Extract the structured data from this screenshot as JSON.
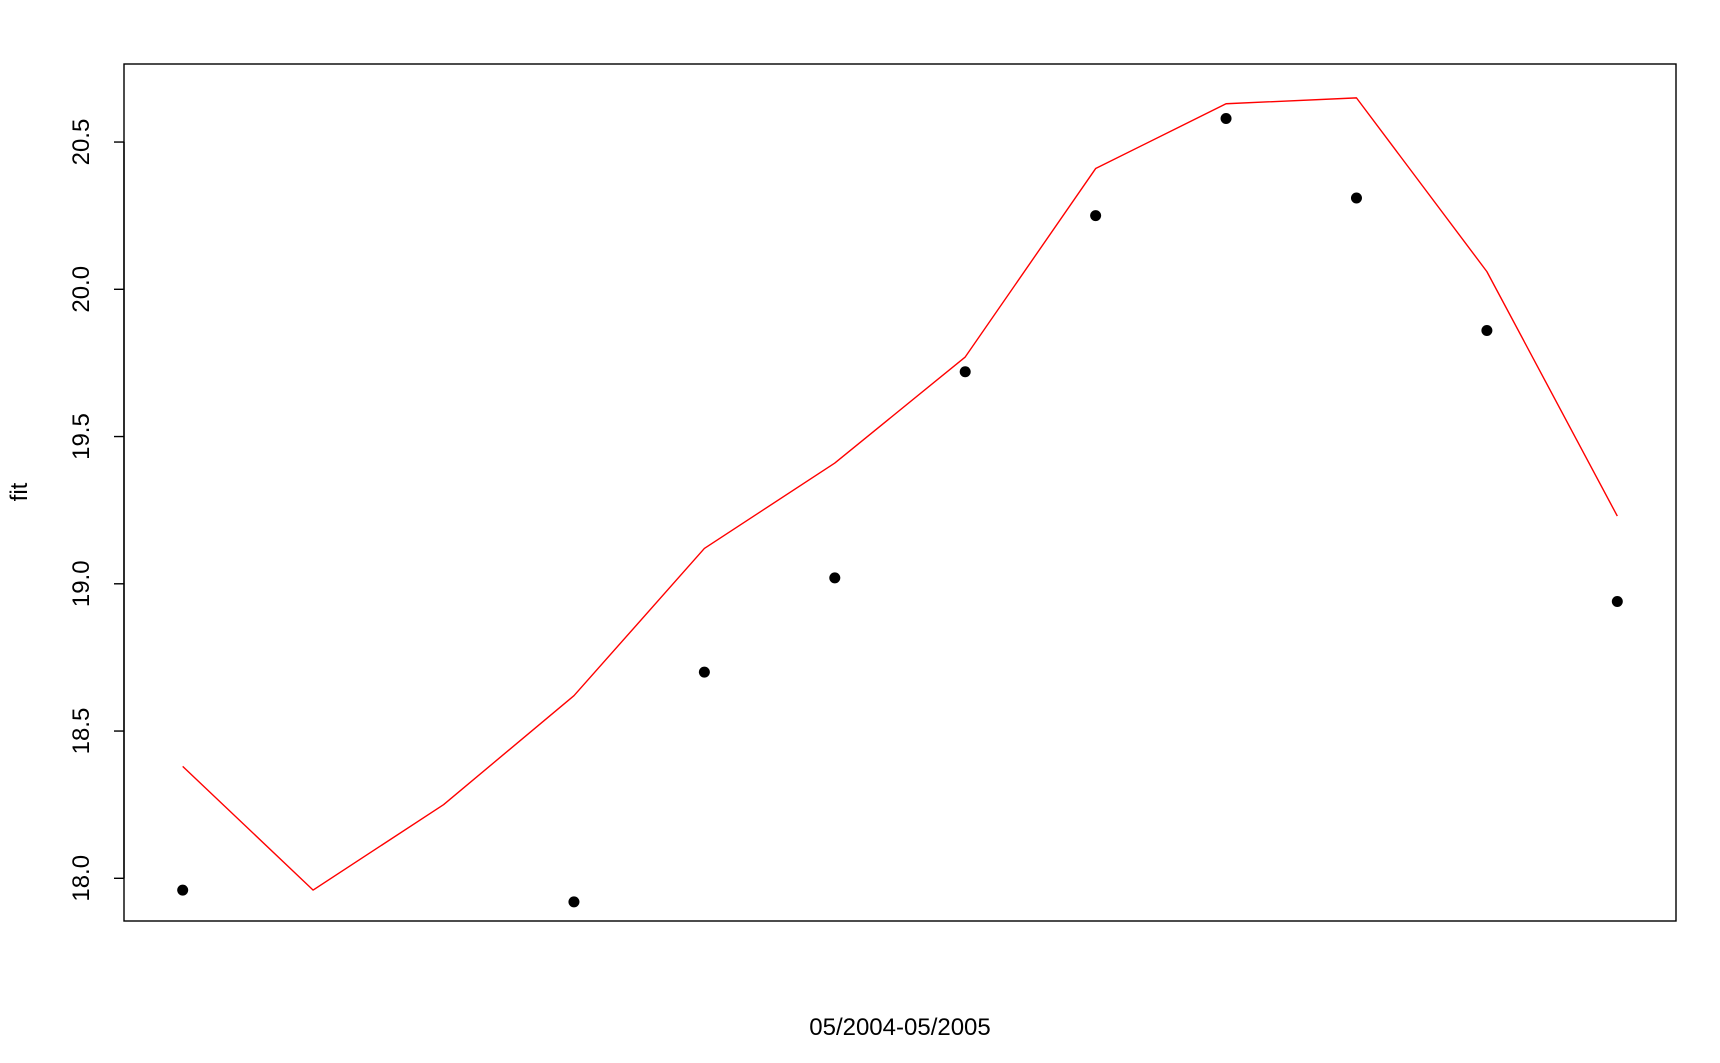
{
  "chart_data": {
    "type": "line",
    "title": "",
    "xlabel": "05/2004-05/2005",
    "ylabel": "fit",
    "x": [
      1,
      2,
      3,
      4,
      5,
      6,
      7,
      8,
      9,
      10,
      11,
      12
    ],
    "xlim": [
      0.55,
      12.45
    ],
    "ylim": [
      17.855,
      20.765
    ],
    "yticks": [
      "18.0",
      "18.5",
      "19.0",
      "19.5",
      "20.0",
      "20.5"
    ],
    "grid": false,
    "legend": "none",
    "series": [
      {
        "kind": "points",
        "color": "#000000",
        "values": [
          17.96,
          null,
          null,
          17.92,
          18.7,
          19.02,
          19.72,
          20.25,
          20.58,
          20.31,
          19.86,
          18.94
        ]
      },
      {
        "kind": "line",
        "color": "#ff0000",
        "values": [
          18.38,
          17.96,
          18.25,
          18.62,
          19.12,
          19.41,
          19.77,
          20.41,
          20.63,
          20.65,
          20.06,
          19.23
        ]
      }
    ]
  }
}
